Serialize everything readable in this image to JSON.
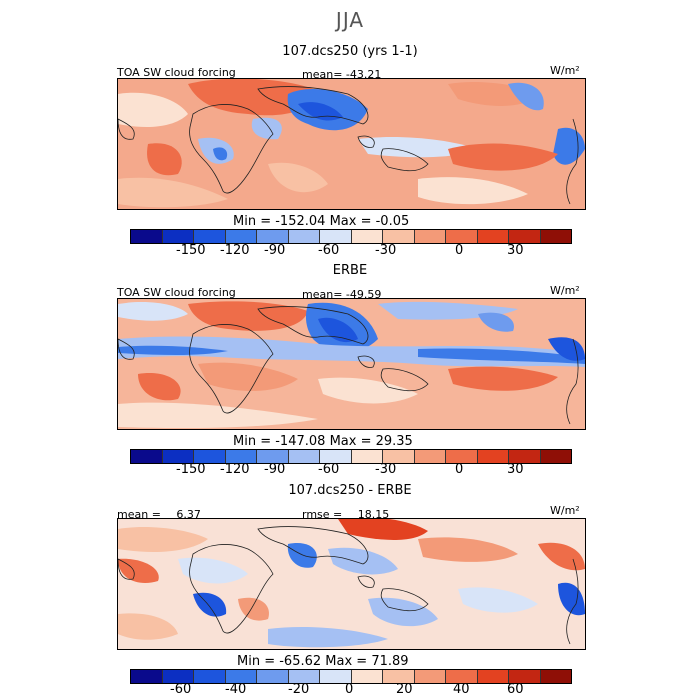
{
  "season": "JJA",
  "panels": [
    {
      "title": "107.dcs250 (yrs 1-1)",
      "left_label": "TOA SW cloud forcing",
      "stat_label": "mean=",
      "stat_value": "-43.21",
      "units": "W/m²",
      "min_label": "Min =",
      "min_value": "-152.04",
      "max_label": "Max =",
      "max_value": "-0.05",
      "colorbar_ticks": [
        "-150",
        "-120",
        "-90",
        "-60",
        "-30",
        "0",
        "30"
      ]
    },
    {
      "title": "ERBE",
      "left_label": "TOA SW cloud forcing",
      "stat_label": "mean=",
      "stat_value": "-49.59",
      "units": "W/m²",
      "min_label": "Min =",
      "min_value": "-147.08",
      "max_label": "Max =",
      "max_value": "29.35",
      "colorbar_ticks": [
        "-150",
        "-120",
        "-90",
        "-60",
        "-30",
        "0",
        "30"
      ]
    },
    {
      "title": "107.dcs250 - ERBE",
      "left_label": "mean =",
      "left_value": "6.37",
      "stat_label": "rmse =",
      "stat_value": "18.15",
      "units": "W/m²",
      "min_label": "Min =",
      "min_value": "-65.62",
      "max_label": "Max =",
      "max_value": "71.89",
      "colorbar_ticks": [
        "-60",
        "-40",
        "-20",
        "0",
        "20",
        "40",
        "60"
      ]
    }
  ],
  "colors": {
    "scale_main": [
      "#0a0a8c",
      "#0c2fc2",
      "#1d55dd",
      "#3c7ae8",
      "#6e9bee",
      "#a5c0f3",
      "#d8e4f8",
      "#fbe2d2",
      "#f8c1a4",
      "#f39a78",
      "#ee6d49",
      "#e34221",
      "#c32612",
      "#8f0f06"
    ],
    "scale_diff": [
      "#0a0a8c",
      "#0c2fc2",
      "#1d55dd",
      "#3c7ae8",
      "#6e9bee",
      "#a5c0f3",
      "#d8e4f8",
      "#fbe2d2",
      "#f8c1a4",
      "#f39a78",
      "#ee6d49",
      "#e34221",
      "#c32612",
      "#8f0f06"
    ]
  }
}
